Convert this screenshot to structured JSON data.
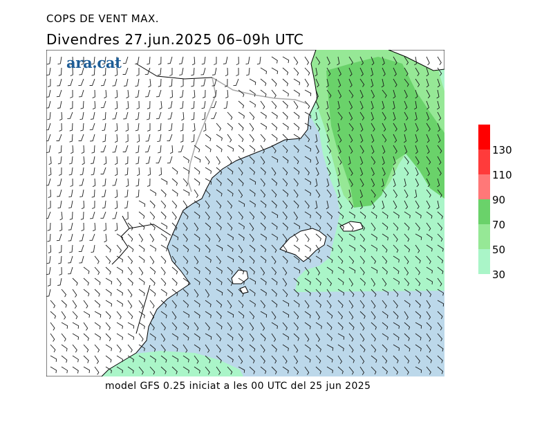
{
  "header": {
    "title": "COPS DE VENT MAX.",
    "subtitle": "Divendres  27.jun.2025 06–09h UTC"
  },
  "logo": {
    "text": "ara.cat",
    "color": "#1e5d96"
  },
  "footer": {
    "text": "model GFS 0.25 iniciat a les 00 UTC del 25 jun 2025"
  },
  "legend": {
    "colors": [
      "#ff0000",
      "#ff3b3b",
      "#ff7878",
      "#6ad26a",
      "#96e896",
      "#aaf5c8"
    ],
    "labels": [
      "130",
      "110",
      "90",
      "70",
      "50",
      "30"
    ],
    "thresholds": [
      30,
      50,
      70,
      90,
      110,
      130
    ]
  },
  "map": {
    "land_color": "#ffffff",
    "sea_color": "#bcd8ea",
    "band_30_50_color": "#aaf5c8",
    "band_50_70_color": "#96e896",
    "band_70_90_color": "#6ad26a",
    "coastline_color": "#000000",
    "border_color": "#a8a8a8",
    "barb_color": "#000000"
  }
}
